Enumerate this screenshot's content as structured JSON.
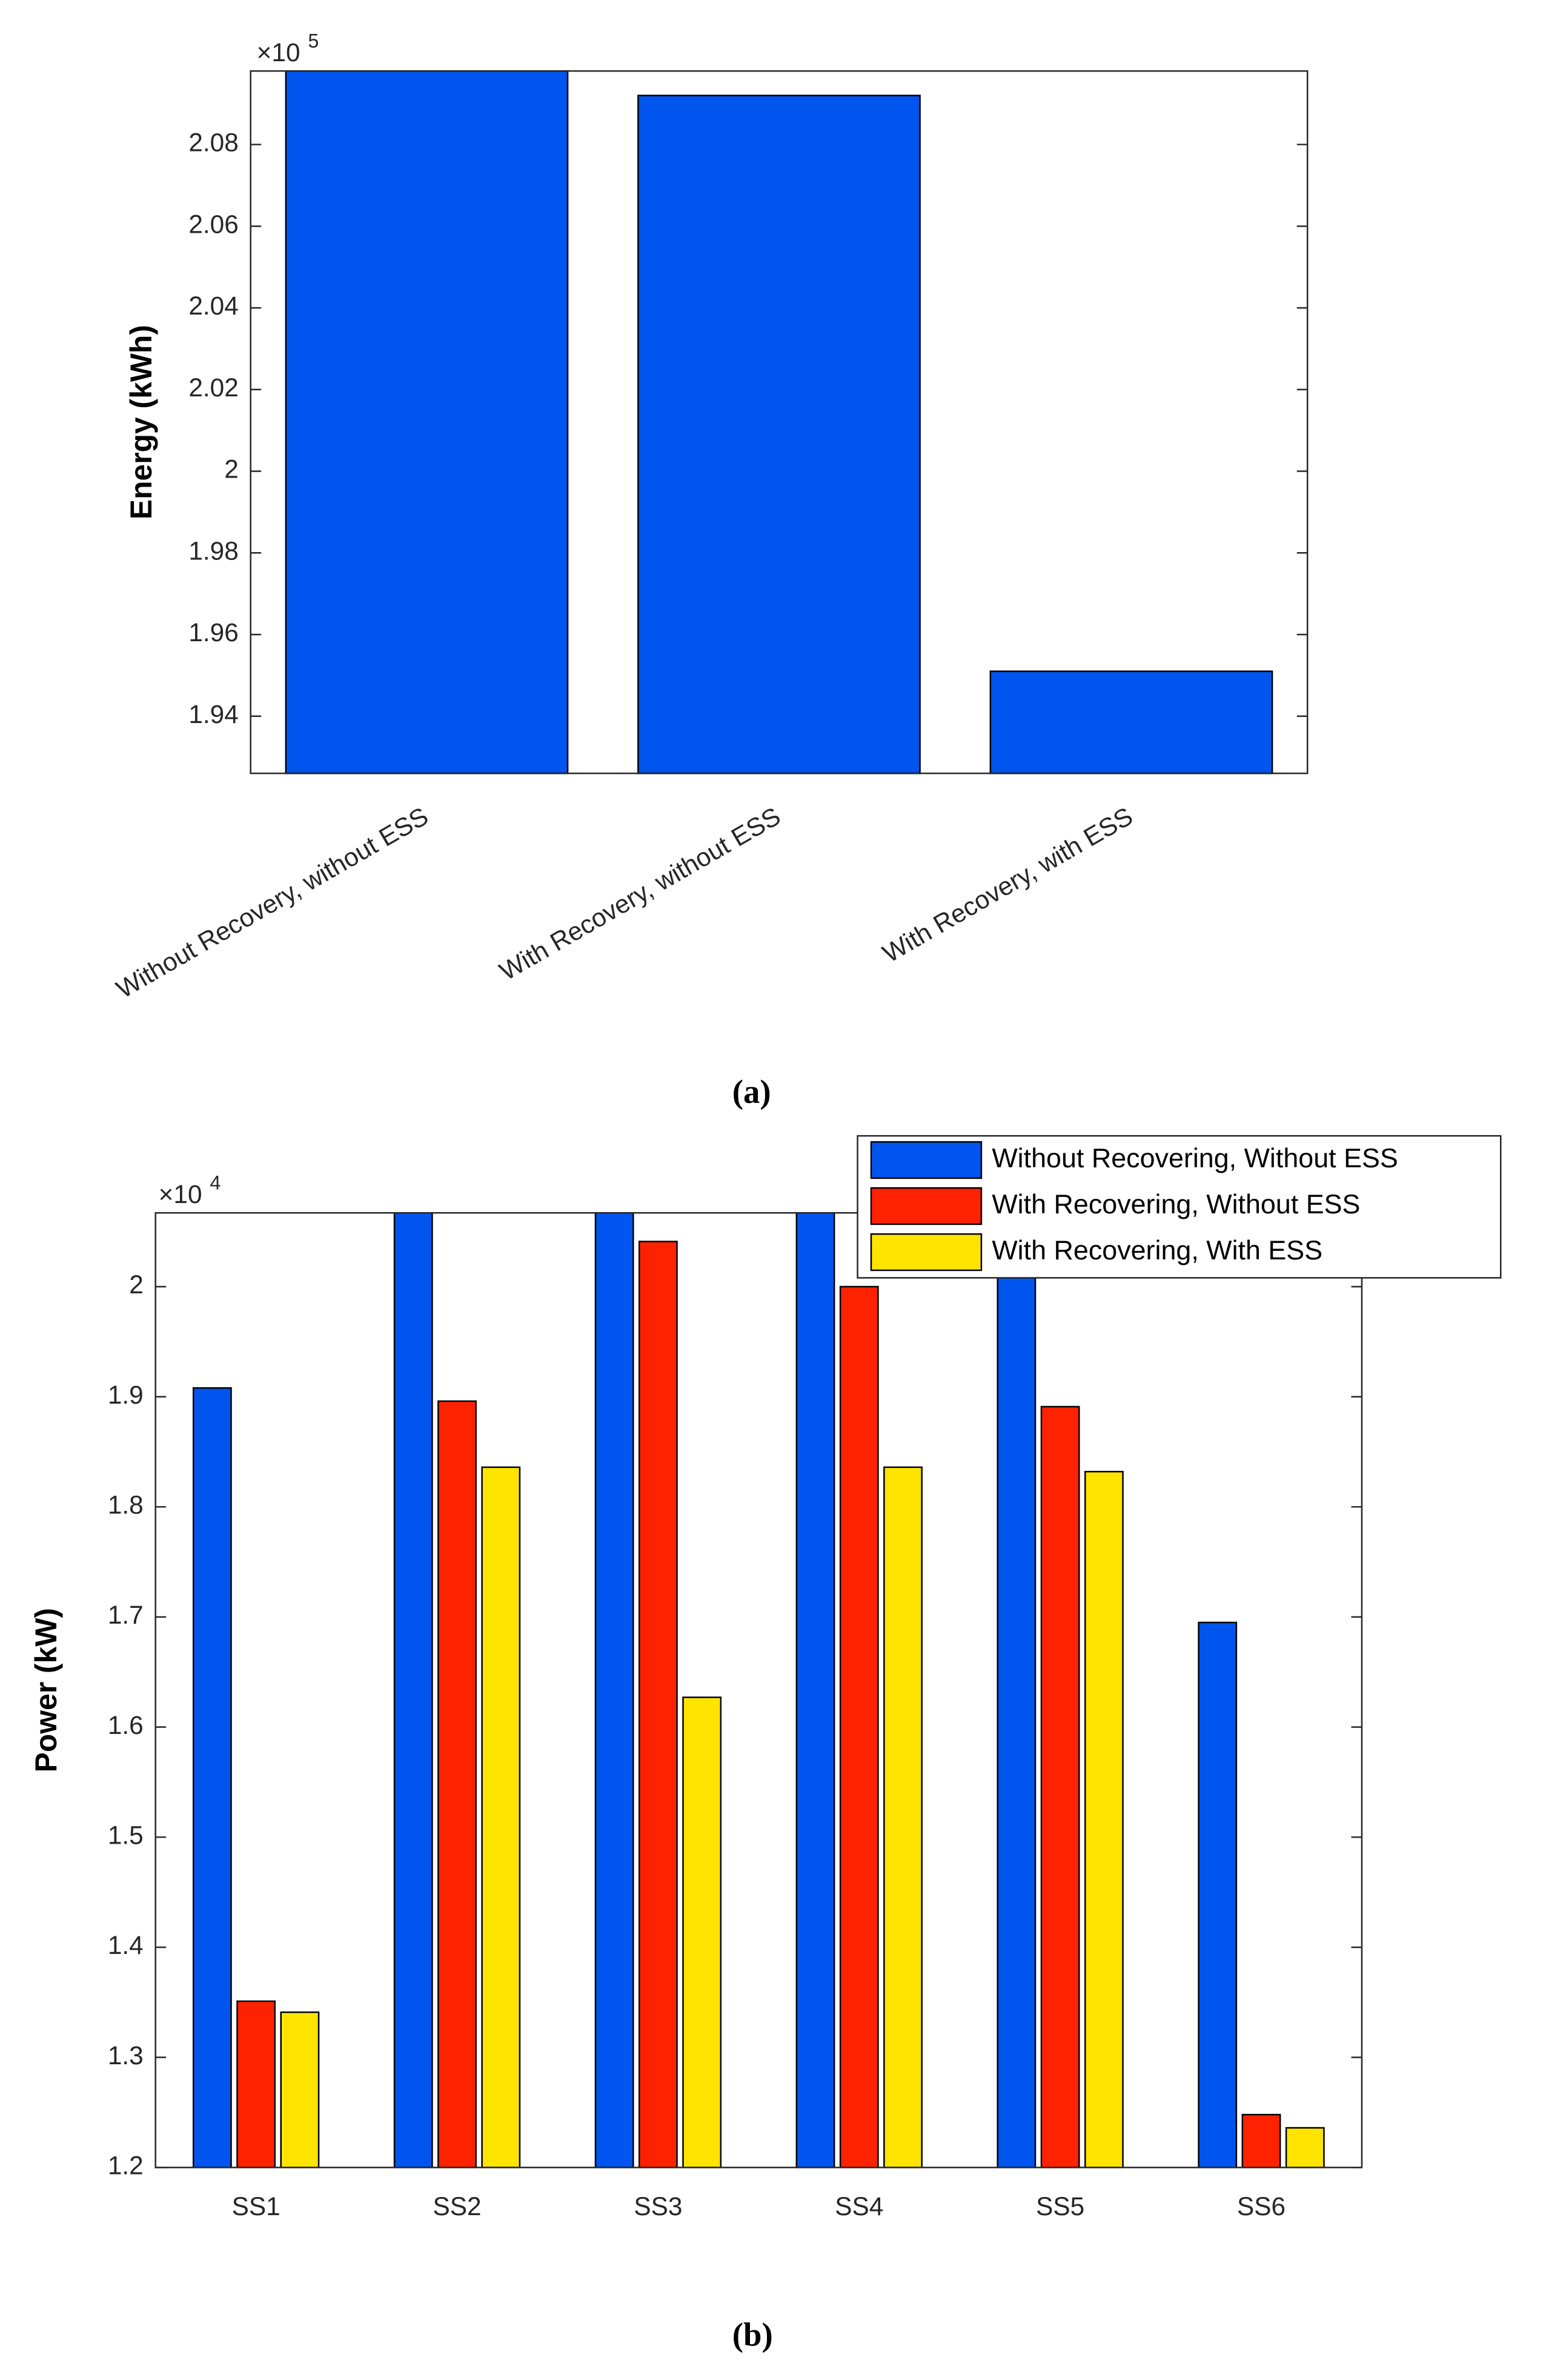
{
  "chart_data": [
    {
      "type": "bar",
      "ylabel": "Energy (kWh)",
      "y_scale_base": "×10",
      "y_scale_exponent": "5",
      "caption": "(a)",
      "categories": [
        "Without Recovery, without ESS",
        "With Recovery, without ESS",
        "With Recovery, with ESS"
      ],
      "values": [
        2.098,
        2.092,
        1.951
      ],
      "color": "#0055ee",
      "ylim": [
        1.926,
        2.098
      ],
      "yticks": [
        1.94,
        1.96,
        1.98,
        {
          "value": 2,
          "label": "2"
        },
        2.02,
        2.04,
        2.06,
        2.08
      ],
      "grid": false
    },
    {
      "type": "grouped-bar",
      "ylabel": "Power (kW)",
      "y_scale_base": "×10",
      "y_scale_exponent": "4",
      "caption": "(b)",
      "categories": [
        "SS1",
        "SS2",
        "SS3",
        "SS4",
        "SS5",
        "SS6"
      ],
      "series": [
        {
          "name": "Without Recovering, Without ESS",
          "color": "#0055ee",
          "values": [
            1.908,
            2.067,
            2.067,
            2.067,
            2.067,
            1.695
          ]
        },
        {
          "name": "With Recovering, Without ESS",
          "color": "#ff2200",
          "values": [
            1.351,
            1.896,
            2.041,
            2.0,
            1.891,
            1.248
          ]
        },
        {
          "name": "With Recovering, With ESS",
          "color": "#ffe400",
          "values": [
            1.341,
            1.836,
            1.627,
            1.836,
            1.832,
            1.236
          ]
        }
      ],
      "ylim": [
        1.2,
        2.067
      ],
      "yticks": [
        1.2,
        1.3,
        1.4,
        1.5,
        1.6,
        1.7,
        1.8,
        1.9,
        {
          "value": 2,
          "label": "2"
        }
      ],
      "grid": false,
      "legend_loc": "northeast"
    }
  ]
}
